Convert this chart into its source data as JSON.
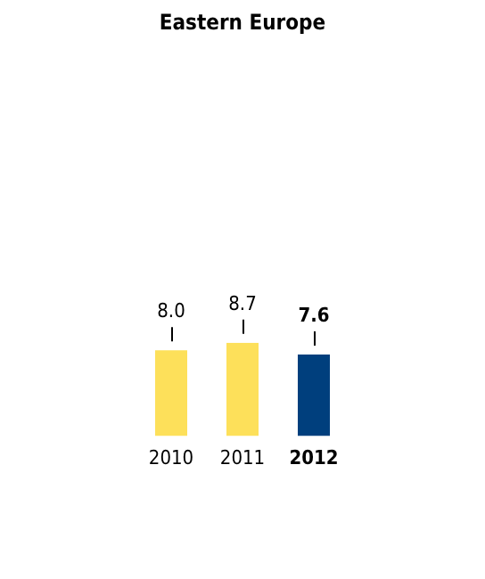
{
  "chart_data": {
    "type": "bar",
    "title": "Eastern Europe",
    "categories": [
      "2010",
      "2011",
      "2012"
    ],
    "values": [
      8.0,
      8.7,
      7.6
    ],
    "value_labels": [
      "8.0",
      "8.7",
      "7.6"
    ],
    "colors": [
      "#fde05a",
      "#fde05a",
      "#003f7d"
    ],
    "tick_labels": "x",
    "grid": false,
    "legend": false
  }
}
